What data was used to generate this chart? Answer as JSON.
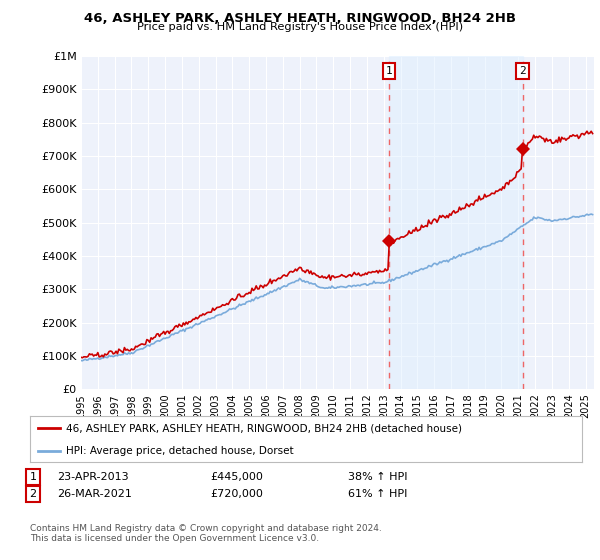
{
  "title": "46, ASHLEY PARK, ASHLEY HEATH, RINGWOOD, BH24 2HB",
  "subtitle": "Price paid vs. HM Land Registry's House Price Index (HPI)",
  "xlim": [
    1995.0,
    2025.5
  ],
  "ylim": [
    0,
    1000000
  ],
  "yticks": [
    0,
    100000,
    200000,
    300000,
    400000,
    500000,
    600000,
    700000,
    800000,
    900000,
    1000000
  ],
  "ytick_labels": [
    "£0",
    "£100K",
    "£200K",
    "£300K",
    "£400K",
    "£500K",
    "£600K",
    "£700K",
    "£800K",
    "£900K",
    "£1M"
  ],
  "xticks": [
    1995,
    1996,
    1997,
    1998,
    1999,
    2000,
    2001,
    2002,
    2003,
    2004,
    2005,
    2006,
    2007,
    2008,
    2009,
    2010,
    2011,
    2012,
    2013,
    2014,
    2015,
    2016,
    2017,
    2018,
    2019,
    2020,
    2021,
    2022,
    2023,
    2024,
    2025
  ],
  "red_line_color": "#cc0000",
  "blue_line_color": "#7aabdb",
  "shade_color": "#ddeeff",
  "vline_color": "#ee6666",
  "background_color": "#ffffff",
  "plot_bg_color": "#eef2fb",
  "grid_color": "#ffffff",
  "legend_label_red": "46, ASHLEY PARK, ASHLEY HEATH, RINGWOOD, BH24 2HB (detached house)",
  "legend_label_blue": "HPI: Average price, detached house, Dorset",
  "sale1_x": 2013.3,
  "sale1_y": 445000,
  "sale2_x": 2021.25,
  "sale2_y": 720000,
  "note1_label": "1",
  "note1_date": "23-APR-2013",
  "note1_price": "£445,000",
  "note1_pct": "38% ↑ HPI",
  "note2_label": "2",
  "note2_date": "26-MAR-2021",
  "note2_price": "£720,000",
  "note2_pct": "61% ↑ HPI",
  "footer": "Contains HM Land Registry data © Crown copyright and database right 2024.\nThis data is licensed under the Open Government Licence v3.0."
}
